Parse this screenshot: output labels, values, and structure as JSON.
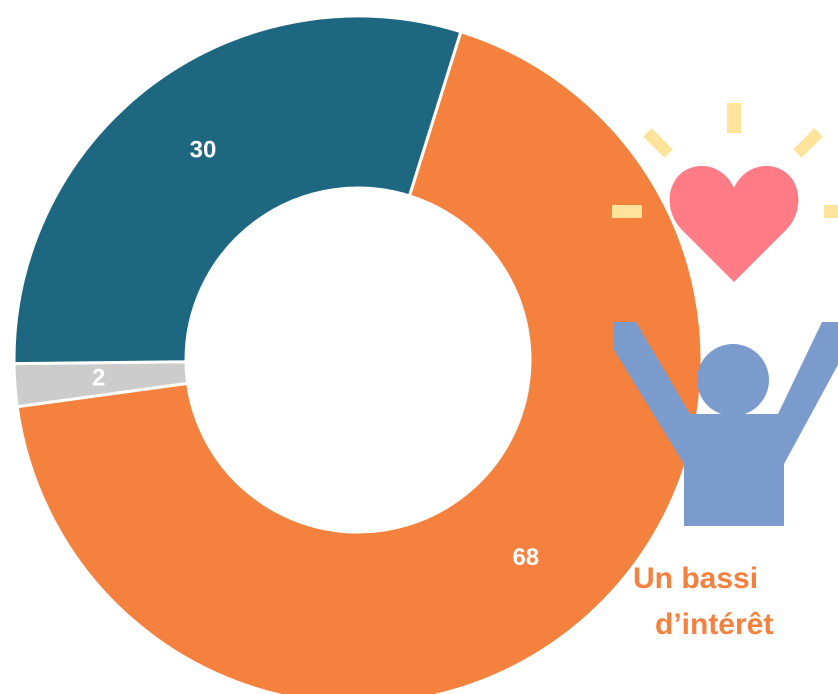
{
  "chart_data": {
    "type": "donut",
    "values": [
      68,
      2,
      30
    ],
    "colors": [
      "#f4813d",
      "#cccccc",
      "#1d6780"
    ],
    "annotations": [
      "Un bassi",
      "d’intérêt"
    ]
  }
}
